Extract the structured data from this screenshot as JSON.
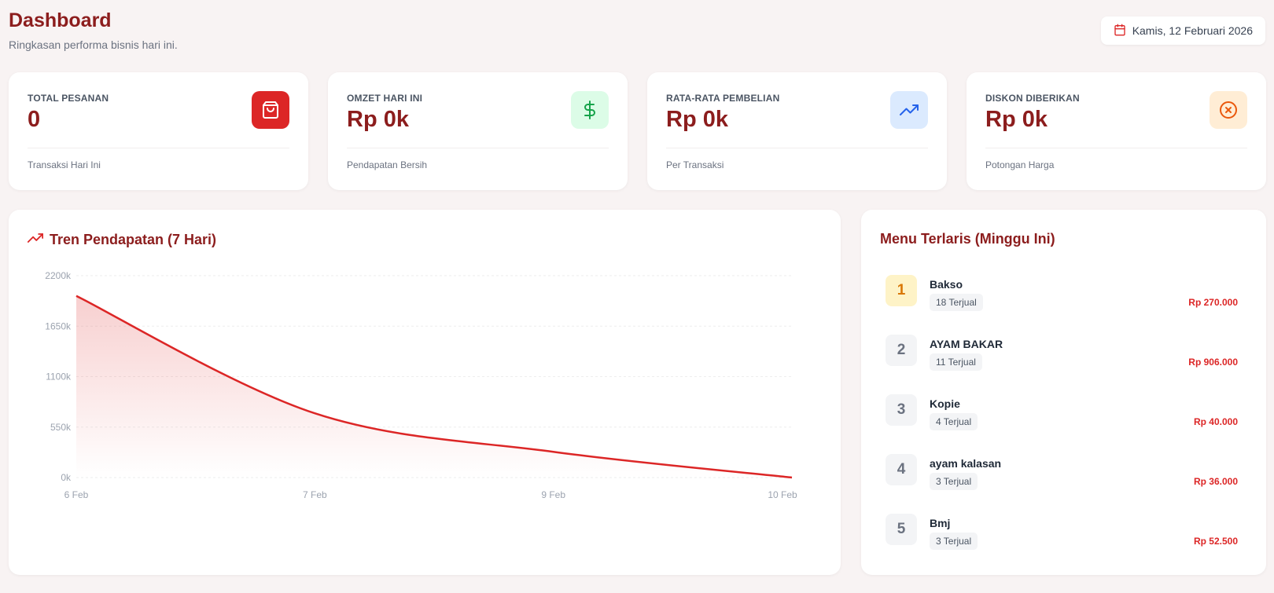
{
  "header": {
    "title": "Dashboard",
    "subtitle": "Ringkasan performa bisnis hari ini.",
    "date": "Kamis, 12 Februari 2026",
    "date_icon": "calendar-icon"
  },
  "stats": [
    {
      "label": "TOTAL PESANAN",
      "value": "0",
      "footnote": "Transaksi Hari Ini",
      "icon": "shopping-bag-icon",
      "icon_bg": "#dc2626",
      "icon_color": "#ffffff"
    },
    {
      "label": "OMZET HARI INI",
      "value": "Rp 0k",
      "footnote": "Pendapatan Bersih",
      "icon": "dollar-icon",
      "icon_bg": "#dcfce7",
      "icon_color": "#16a34a"
    },
    {
      "label": "RATA-RATA PEMBELIAN",
      "value": "Rp 0k",
      "footnote": "Per Transaksi",
      "icon": "trending-up-icon",
      "icon_bg": "#dbeafe",
      "icon_color": "#2563eb"
    },
    {
      "label": "DISKON DIBERIKAN",
      "value": "Rp 0k",
      "footnote": "Potongan Harga",
      "icon": "x-circle-icon",
      "icon_bg": "#ffedd5",
      "icon_color": "#ea580c"
    }
  ],
  "revenue_chart": {
    "title": "Tren Pendapatan (7 Hari)",
    "icon": "trending-up-icon"
  },
  "chart_data": {
    "type": "area",
    "title": "Tren Pendapatan (7 Hari)",
    "xlabel": "",
    "ylabel": "",
    "x": [
      "6 Feb",
      "7 Feb",
      "9 Feb",
      "10 Feb"
    ],
    "series": [
      {
        "values": [
          1980000,
          700000,
          280000,
          0
        ]
      }
    ],
    "ylim": [
      0,
      2200000
    ],
    "yticks": [
      "0k",
      "550k",
      "1100k",
      "1650k",
      "2200k"
    ],
    "ytick_values": [
      0,
      550000,
      1100000,
      1650000,
      2200000
    ],
    "grid": true,
    "color": "#dc2626"
  },
  "top_menu": {
    "title": "Menu Terlaris (Minggu Ini)",
    "items": [
      {
        "rank": "1",
        "name": "Bakso",
        "sold": "18 Terjual",
        "price": "Rp 270.000"
      },
      {
        "rank": "2",
        "name": "AYAM BAKAR",
        "sold": "11 Terjual",
        "price": "Rp 906.000"
      },
      {
        "rank": "3",
        "name": "Kopie",
        "sold": "4 Terjual",
        "price": "Rp 40.000"
      },
      {
        "rank": "4",
        "name": "ayam kalasan",
        "sold": "3 Terjual",
        "price": "Rp 36.000"
      },
      {
        "rank": "5",
        "name": "Bmj",
        "sold": "3 Terjual",
        "price": "Rp 52.500"
      }
    ]
  }
}
